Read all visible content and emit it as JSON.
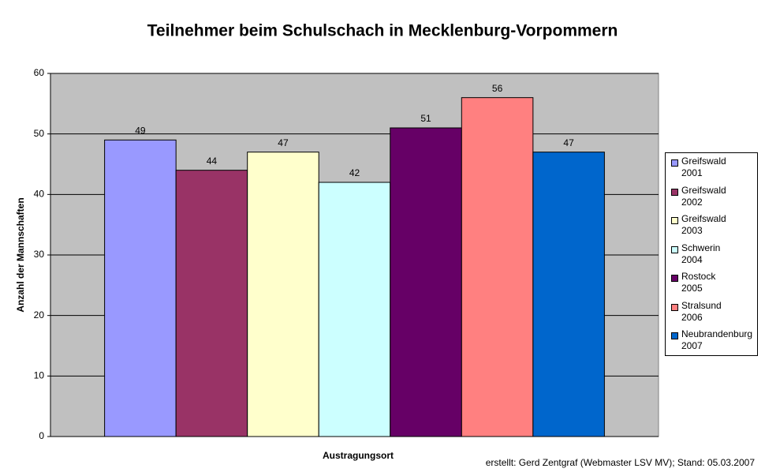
{
  "chart_data": {
    "type": "bar",
    "title": "Teilnehmer beim Schulschach in Mecklenburg-Vorpommern",
    "x_label": "Austragungsort",
    "y_label": "Anzahl der Mannschaften",
    "note": "erstellt: Gerd Zentgraf (Webmaster LSV MV); Stand: 05.03.2007",
    "categories": [
      null
    ],
    "series": [
      {
        "name": "Greifswald 2001",
        "color": "#9999ff",
        "values": [
          49
        ]
      },
      {
        "name": "Greifswald 2002",
        "color": "#993366",
        "values": [
          44
        ]
      },
      {
        "name": "Greifswald 2003",
        "color": "#ffffcc",
        "values": [
          47
        ]
      },
      {
        "name": "Schwerin 2004",
        "color": "#ccffff",
        "values": [
          42
        ]
      },
      {
        "name": "Rostock 2005",
        "color": "#660066",
        "values": [
          51
        ]
      },
      {
        "name": "Stralsund 2006",
        "color": "#ff8080",
        "values": [
          56
        ]
      },
      {
        "name": "Neubrandenburg 2007",
        "color": "#0066cc",
        "values": [
          47
        ]
      }
    ],
    "ylim": [
      0,
      60
    ],
    "yticks": [
      0,
      10,
      20,
      30,
      40,
      50,
      60
    ],
    "grid": true,
    "legend": "right"
  }
}
